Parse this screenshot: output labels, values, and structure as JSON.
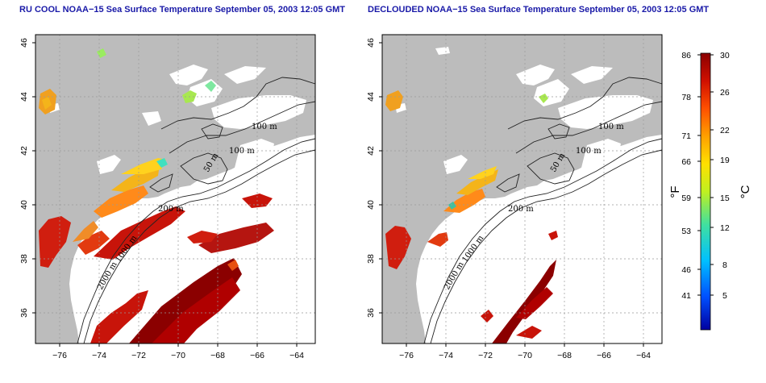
{
  "panels": [
    {
      "title": "RU COOL NOAA−15 Sea Surface Temperature September 05, 2003 12:05 GMT"
    },
    {
      "title": "DECLOUDED NOAA−15 Sea Surface Temperature September 05, 2003 12:05 GMT"
    }
  ],
  "axes": {
    "lon_ticks": [
      "−76",
      "−74",
      "−72",
      "−70",
      "−68",
      "−66",
      "−64"
    ],
    "lat_ticks": [
      "36",
      "38",
      "40",
      "42",
      "44",
      "46"
    ],
    "lon_range": [
      -77.2,
      -63.0
    ],
    "lat_range": [
      35.0,
      46.0
    ]
  },
  "contour_labels": [
    "100 m",
    "100 m",
    "50 m",
    "200 m",
    "200 m",
    "1000 m",
    "2000 m"
  ],
  "colorbar": {
    "fahrenheit_ticks": [
      "86",
      "78",
      "71",
      "66",
      "59",
      "53",
      "46",
      "41"
    ],
    "celsius_ticks": [
      "30",
      "26",
      "22",
      "19",
      "15",
      "12",
      "8",
      "5"
    ],
    "fahrenheit_unit": "°F",
    "celsius_unit": "°C",
    "colors": [
      "#0000a0",
      "#0050ff",
      "#00c0ff",
      "#40e0a0",
      "#c0f020",
      "#ffe000",
      "#ffa000",
      "#ff5000",
      "#d01000",
      "#8b0000"
    ]
  }
}
